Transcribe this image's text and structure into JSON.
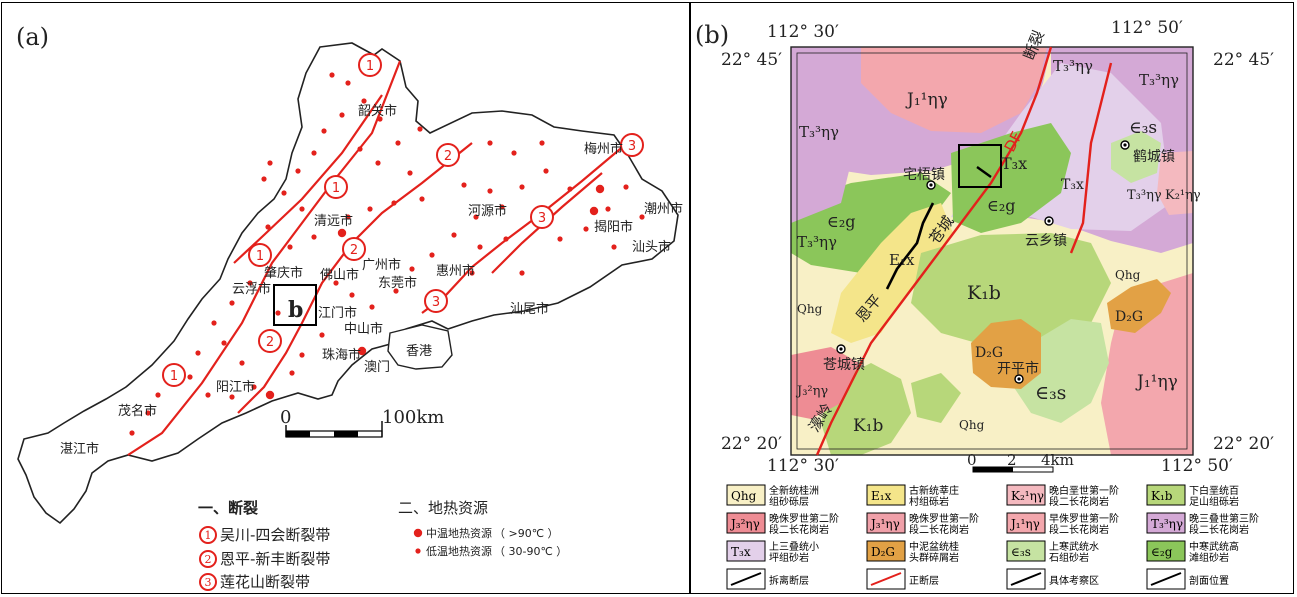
{
  "panel_a": {
    "label": "(a)",
    "cities": [
      {
        "id": "shaoguan",
        "name": "韶关市"
      },
      {
        "id": "meizhou",
        "name": "梅州市"
      },
      {
        "id": "qingyuan",
        "name": "清远市"
      },
      {
        "id": "heyuan",
        "name": "河源市"
      },
      {
        "id": "jieyang",
        "name": "揭阳市"
      },
      {
        "id": "chaozhou",
        "name": "潮州市"
      },
      {
        "id": "shantou",
        "name": "汕头市"
      },
      {
        "id": "zhaoqing",
        "name": "肇庆市"
      },
      {
        "id": "guangzhou",
        "name": "广州市"
      },
      {
        "id": "foshan",
        "name": "佛山市"
      },
      {
        "id": "dongguan",
        "name": "东莞市"
      },
      {
        "id": "huizhou",
        "name": "惠州市"
      },
      {
        "id": "yunfu",
        "name": "云浮市"
      },
      {
        "id": "jiangmen",
        "name": "江门市"
      },
      {
        "id": "zhongshan",
        "name": "中山市"
      },
      {
        "id": "shanwei",
        "name": "汕尾市"
      },
      {
        "id": "xianggang",
        "name": "香港"
      },
      {
        "id": "zhuhai",
        "name": "珠海市"
      },
      {
        "id": "aomen",
        "name": "澳门"
      },
      {
        "id": "yangjiang",
        "name": "阳江市"
      },
      {
        "id": "maoming",
        "name": "茂名市"
      },
      {
        "id": "zhanjiang",
        "name": "湛江市"
      }
    ],
    "fault_numbers": [
      "1",
      "2",
      "3"
    ],
    "inset_box_label": "b",
    "scale": {
      "start": "0",
      "end": "100km"
    },
    "legend": {
      "faults_title": "一、断裂",
      "faults": [
        {
          "num": "1",
          "name": "吴川-四会断裂带"
        },
        {
          "num": "2",
          "name": "恩平-新丰断裂带"
        },
        {
          "num": "3",
          "name": "莲花山断裂带"
        }
      ],
      "geothermal_title": "二、地热资源",
      "geothermal": [
        {
          "name": "中温地热资源",
          "range": "（ >90℃ ）"
        },
        {
          "name": "低温地热资源",
          "range": "（ 30-90℃ ）"
        }
      ]
    }
  },
  "panel_b": {
    "label": "(b)",
    "coords": {
      "top_left_lon": "112° 30′",
      "top_right_lon": "112° 50′",
      "bottom_left_lon": "112° 30′",
      "bottom_right_lon": "112° 50′",
      "top_left_lat": "22° 45′",
      "top_right_lat": "22° 45′",
      "bottom_left_lat": "22° 20′",
      "bottom_right_lat": "22° 20′"
    },
    "towns": [
      {
        "id": "zhaiwu",
        "name": "宅梧镇"
      },
      {
        "id": "yunxiang",
        "name": "云乡镇"
      },
      {
        "id": "hecheng",
        "name": "鹤城镇"
      },
      {
        "id": "cangcheng",
        "name": "苍城镇"
      },
      {
        "id": "kaiping",
        "name": "开平市"
      }
    ],
    "fault_labels": {
      "duanlie": "断裂",
      "df": "DF",
      "cangcheng": "苍城",
      "enping": "恩平",
      "haoling": "濠岭"
    },
    "units": {
      "j1_nw": "J₁¹ηγ",
      "t3_top": "T₃³ηγ",
      "t3_topright": "T₃³ηγ",
      "t3_left": "T₃³ηγ",
      "t3_left2": "T₃³ηγ",
      "t3_mid_right": "T₃³ηγ",
      "e3s_top": "∈₃s",
      "k2_right": "K₂¹ηγ",
      "t3x_box": "T₃x",
      "t3x_mid": "T₃x",
      "e2g_mid": "∈₂g",
      "e2g_left": "∈₂g",
      "e1x": "E₁x",
      "k1b_mid": "K₁b",
      "qhg_left": "Qhg",
      "qhg_right": "Qhg",
      "qhg_bottom": "Qhg",
      "d2g_right": "D₂G",
      "d2g_mid": "D₂G",
      "e3s_bottom": "∈₃s",
      "j1_right": "J₁¹ηγ",
      "j3_left": "J₃²ηγ",
      "k1b_bottom": "K₁b"
    },
    "scale": {
      "start": "0",
      "mid": "2",
      "end": "4km"
    },
    "legend": [
      {
        "code": "Qhg",
        "desc": "全新统桂洲组砂砾层",
        "color": "#f8f0c6"
      },
      {
        "code": "E₁x",
        "desc": "古新统莘庄村组砾岩",
        "color": "#f4e58a"
      },
      {
        "code": "K₂¹ηγ",
        "desc": "晚白垩世第一阶段二长花岗岩",
        "color": "#f4b9bf"
      },
      {
        "code": "K₁b",
        "desc": "下白垩统百足山组砾岩",
        "color": "#b7d77a"
      },
      {
        "code": "J₃²ηγ",
        "desc": "晚侏罗世第二阶段二长花岗岩",
        "color": "#ee8c94"
      },
      {
        "code": "J₃¹ηγ",
        "desc": "晚侏罗世第一阶段二长花岗岩",
        "color": "#f0a0a9"
      },
      {
        "code": "J₁¹ηγ",
        "desc": "早侏罗世第一阶段二长花岗岩",
        "color": "#f3a7ad"
      },
      {
        "code": "T₃³ηγ",
        "desc": "晚三叠世第三阶段二长花岗岩",
        "color": "#d4a9d6"
      },
      {
        "code": "T₃x",
        "desc": "上三叠统小坪组砂岩",
        "color": "#e3d0ea"
      },
      {
        "code": "D₂G",
        "desc": "中泥盆统桂头群碎屑岩",
        "color": "#e2a145"
      },
      {
        "code": "∈₃s",
        "desc": "上寒武统水石组砂岩",
        "color": "#c6e3a2"
      },
      {
        "code": "∈₂g",
        "desc": "中寒武统高滩组砂岩",
        "color": "#8bc65a"
      },
      {
        "code": "",
        "desc": "拆离断层",
        "color": "#ffffff"
      },
      {
        "code": "",
        "desc": "正断层",
        "color": "#ffffff"
      },
      {
        "code": "",
        "desc": "具体考察区",
        "color": "#ffffff"
      },
      {
        "code": "",
        "desc": "剖面位置",
        "color": "#ffffff"
      }
    ]
  }
}
